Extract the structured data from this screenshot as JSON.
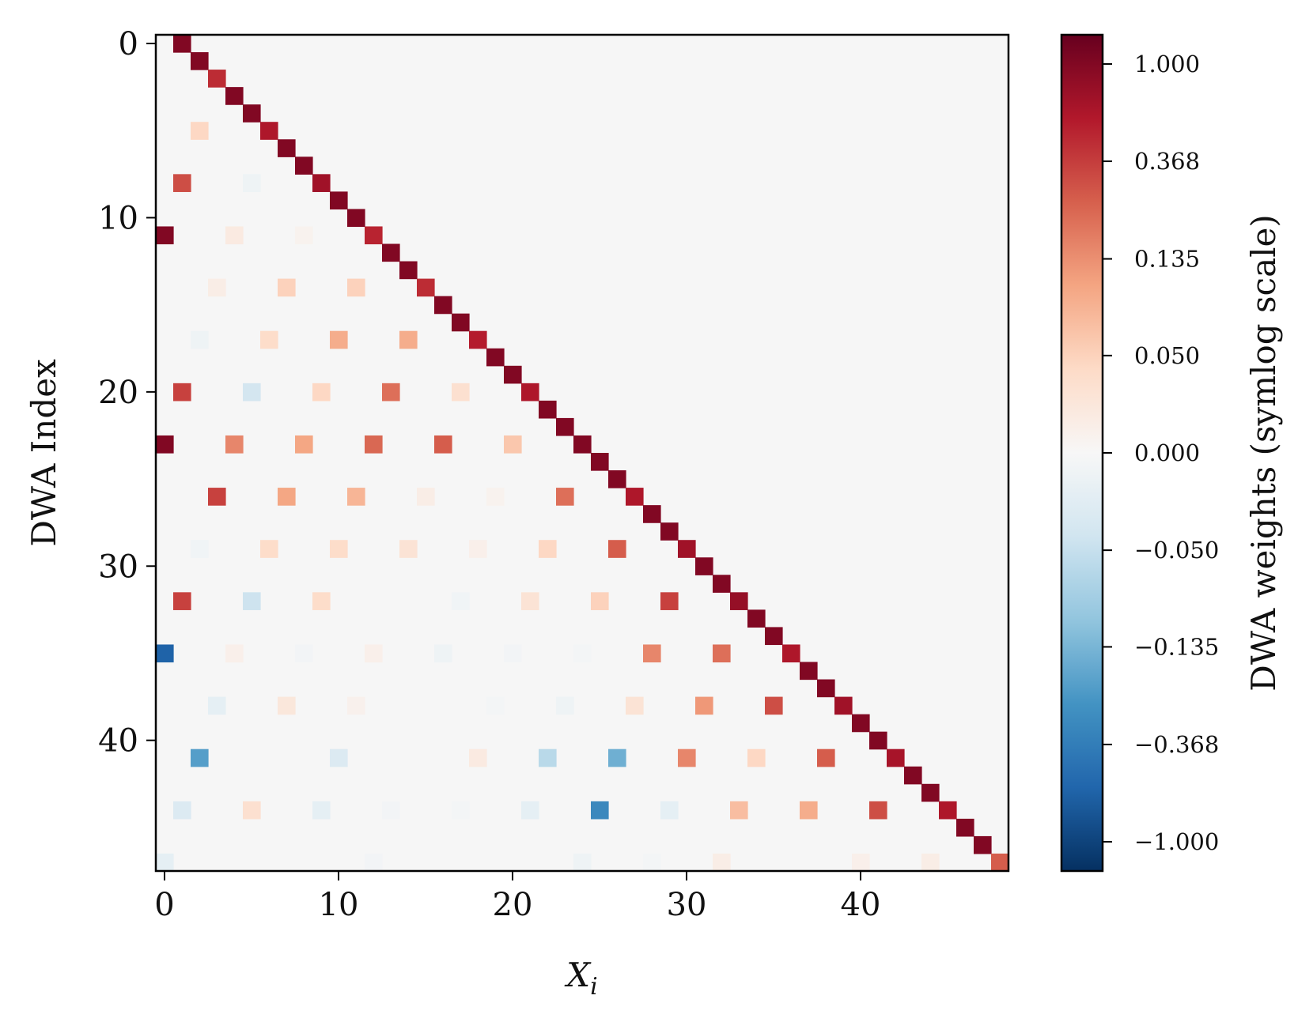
{
  "chart_data": {
    "type": "heatmap",
    "xlabel": "X",
    "xlabel_subscript": "i",
    "ylabel": "DWA Index",
    "colorbar_label": "DWA weights (symlog scale)",
    "scale": "symlog",
    "linthresh": 0.05,
    "vlim": [
      -1.35,
      1.35
    ],
    "colormap": "RdBu_r",
    "background_color": "#f6f6f6",
    "nrows": 48,
    "ncols": 49,
    "xlim": [
      -0.5,
      48.5
    ],
    "ylim": [
      47.5,
      -0.5
    ],
    "x_ticks": [
      0,
      10,
      20,
      30,
      40
    ],
    "x_tick_labels": [
      "0",
      "10",
      "20",
      "30",
      "40"
    ],
    "y_ticks": [
      0,
      10,
      20,
      30,
      40
    ],
    "y_tick_labels": [
      "0",
      "10",
      "20",
      "30",
      "40"
    ],
    "colorbar_ticks": [
      1.0,
      0.368,
      0.135,
      0.05,
      0.0,
      -0.05,
      -0.135,
      -0.368,
      -1.0
    ],
    "colorbar_tick_labels": [
      "1.000",
      "0.368",
      "0.135",
      "0.050",
      "0.000",
      "−0.050",
      "−0.135",
      "−0.368",
      "−1.000"
    ],
    "diagonal_values": [
      1.0,
      1.0,
      0.45,
      1.0,
      1.0,
      0.6,
      1.0,
      1.0,
      0.7,
      1.0,
      1.0,
      0.5,
      1.0,
      1.0,
      0.45,
      1.0,
      1.0,
      0.55,
      1.0,
      1.0,
      0.6,
      1.0,
      1.0,
      1.0,
      1.0,
      1.0,
      0.6,
      1.0,
      1.0,
      0.7,
      1.0,
      1.0,
      0.8,
      1.0,
      1.0,
      0.6,
      1.0,
      1.0,
      0.7,
      1.0,
      1.0,
      0.65,
      1.0,
      1.0,
      0.6,
      1.0,
      1.0,
      0.25
    ],
    "cells": [
      {
        "row": 5,
        "col": 2,
        "value": 0.045
      },
      {
        "row": 8,
        "col": 1,
        "value": 0.3
      },
      {
        "row": 8,
        "col": 5,
        "value": -0.01
      },
      {
        "row": 11,
        "col": 0,
        "value": 1.0
      },
      {
        "row": 11,
        "col": 4,
        "value": 0.02
      },
      {
        "row": 11,
        "col": 8,
        "value": 0.008
      },
      {
        "row": 14,
        "col": 3,
        "value": 0.015
      },
      {
        "row": 14,
        "col": 7,
        "value": 0.05
      },
      {
        "row": 14,
        "col": 11,
        "value": 0.05
      },
      {
        "row": 17,
        "col": 2,
        "value": -0.01
      },
      {
        "row": 17,
        "col": 6,
        "value": 0.04
      },
      {
        "row": 17,
        "col": 10,
        "value": 0.09
      },
      {
        "row": 17,
        "col": 14,
        "value": 0.09
      },
      {
        "row": 20,
        "col": 1,
        "value": 0.35
      },
      {
        "row": 20,
        "col": 5,
        "value": -0.04
      },
      {
        "row": 20,
        "col": 9,
        "value": 0.045
      },
      {
        "row": 20,
        "col": 13,
        "value": 0.2
      },
      {
        "row": 20,
        "col": 17,
        "value": 0.035
      },
      {
        "row": 23,
        "col": 0,
        "value": 1.0
      },
      {
        "row": 23,
        "col": 4,
        "value": 0.15
      },
      {
        "row": 23,
        "col": 8,
        "value": 0.1
      },
      {
        "row": 23,
        "col": 12,
        "value": 0.22
      },
      {
        "row": 23,
        "col": 16,
        "value": 0.25
      },
      {
        "row": 23,
        "col": 20,
        "value": 0.06
      },
      {
        "row": 26,
        "col": 3,
        "value": 0.35
      },
      {
        "row": 26,
        "col": 7,
        "value": 0.1
      },
      {
        "row": 26,
        "col": 11,
        "value": 0.08
      },
      {
        "row": 26,
        "col": 15,
        "value": 0.015
      },
      {
        "row": 26,
        "col": 19,
        "value": 0.008
      },
      {
        "row": 26,
        "col": 23,
        "value": 0.2
      },
      {
        "row": 29,
        "col": 2,
        "value": -0.008
      },
      {
        "row": 29,
        "col": 6,
        "value": 0.04
      },
      {
        "row": 29,
        "col": 10,
        "value": 0.04
      },
      {
        "row": 29,
        "col": 14,
        "value": 0.03
      },
      {
        "row": 29,
        "col": 18,
        "value": 0.012
      },
      {
        "row": 29,
        "col": 22,
        "value": 0.045
      },
      {
        "row": 29,
        "col": 26,
        "value": 0.25
      },
      {
        "row": 32,
        "col": 1,
        "value": 0.35
      },
      {
        "row": 32,
        "col": 5,
        "value": -0.045
      },
      {
        "row": 32,
        "col": 9,
        "value": 0.04
      },
      {
        "row": 32,
        "col": 17,
        "value": -0.008
      },
      {
        "row": 32,
        "col": 21,
        "value": 0.03
      },
      {
        "row": 32,
        "col": 25,
        "value": 0.05
      },
      {
        "row": 32,
        "col": 29,
        "value": 0.35
      },
      {
        "row": 35,
        "col": 0,
        "value": -0.6
      },
      {
        "row": 35,
        "col": 4,
        "value": 0.012
      },
      {
        "row": 35,
        "col": 8,
        "value": -0.006
      },
      {
        "row": 35,
        "col": 12,
        "value": 0.012
      },
      {
        "row": 35,
        "col": 16,
        "value": -0.01
      },
      {
        "row": 35,
        "col": 20,
        "value": -0.006
      },
      {
        "row": 35,
        "col": 24,
        "value": -0.004
      },
      {
        "row": 35,
        "col": 28,
        "value": 0.15
      },
      {
        "row": 35,
        "col": 32,
        "value": 0.2
      },
      {
        "row": 38,
        "col": 3,
        "value": -0.02
      },
      {
        "row": 38,
        "col": 7,
        "value": 0.025
      },
      {
        "row": 38,
        "col": 11,
        "value": 0.01
      },
      {
        "row": 38,
        "col": 19,
        "value": -0.004
      },
      {
        "row": 38,
        "col": 23,
        "value": -0.01
      },
      {
        "row": 38,
        "col": 27,
        "value": 0.03
      },
      {
        "row": 38,
        "col": 31,
        "value": 0.12
      },
      {
        "row": 38,
        "col": 35,
        "value": 0.3
      },
      {
        "row": 41,
        "col": 2,
        "value": -0.2
      },
      {
        "row": 41,
        "col": 10,
        "value": -0.03
      },
      {
        "row": 41,
        "col": 18,
        "value": 0.02
      },
      {
        "row": 41,
        "col": 22,
        "value": -0.06
      },
      {
        "row": 41,
        "col": 26,
        "value": -0.15
      },
      {
        "row": 41,
        "col": 30,
        "value": 0.15
      },
      {
        "row": 41,
        "col": 34,
        "value": 0.045
      },
      {
        "row": 41,
        "col": 38,
        "value": 0.25
      },
      {
        "row": 44,
        "col": 1,
        "value": -0.03
      },
      {
        "row": 44,
        "col": 5,
        "value": 0.035
      },
      {
        "row": 44,
        "col": 9,
        "value": -0.02
      },
      {
        "row": 44,
        "col": 13,
        "value": -0.006
      },
      {
        "row": 44,
        "col": 17,
        "value": -0.005
      },
      {
        "row": 44,
        "col": 21,
        "value": -0.02
      },
      {
        "row": 44,
        "col": 25,
        "value": -0.3
      },
      {
        "row": 44,
        "col": 29,
        "value": -0.02
      },
      {
        "row": 44,
        "col": 33,
        "value": 0.07
      },
      {
        "row": 44,
        "col": 37,
        "value": 0.09
      },
      {
        "row": 44,
        "col": 41,
        "value": 0.3
      },
      {
        "row": 47,
        "col": 0,
        "value": -0.02
      },
      {
        "row": 47,
        "col": 12,
        "value": -0.006
      },
      {
        "row": 47,
        "col": 24,
        "value": -0.01
      },
      {
        "row": 47,
        "col": 28,
        "value": -0.004
      },
      {
        "row": 47,
        "col": 32,
        "value": 0.015
      },
      {
        "row": 47,
        "col": 40,
        "value": 0.012
      },
      {
        "row": 47,
        "col": 44,
        "value": 0.015
      }
    ]
  }
}
